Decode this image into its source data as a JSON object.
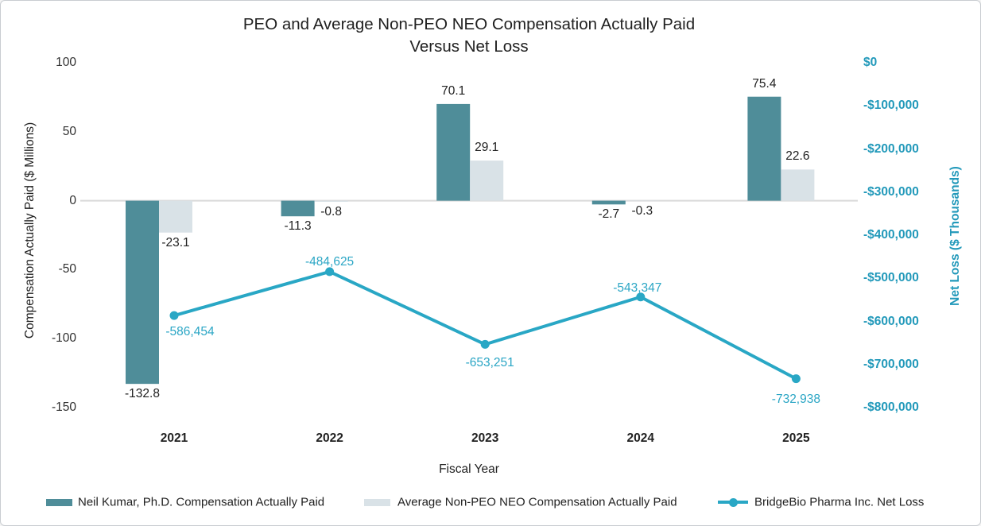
{
  "title": {
    "line1": "PEO and Average Non-PEO NEO Compensation Actually Paid",
    "line2": "Versus Net Loss"
  },
  "chart_data": {
    "type": "combo-bar-line",
    "categories": [
      "2021",
      "2022",
      "2023",
      "2024",
      "2025"
    ],
    "xlabel": "Fiscal Year",
    "left_axis": {
      "label": "Compensation Actually Paid ($ Millions)",
      "ticks": [
        "100",
        "50",
        "0",
        "-50",
        "-100",
        "-150"
      ],
      "range": [
        -150,
        100
      ],
      "grid": false
    },
    "right_axis": {
      "label": "Net Loss ($ Thousands)",
      "ticks": [
        "$0",
        "-$100,000",
        "-$200,000",
        "-$300,000",
        "-$400,000",
        "-$500,000",
        "-$600,000",
        "-$700,000",
        "-$800,000"
      ],
      "range": [
        -800000,
        0
      ],
      "grid": false
    },
    "series": [
      {
        "name": "Neil Kumar, Ph.D. Compensation Actually Paid",
        "type": "bar",
        "axis": "left",
        "color": "#4F8D99",
        "values": [
          -132.8,
          -11.3,
          70.1,
          -2.7,
          75.4
        ],
        "labels": [
          "-132.8",
          "-11.3",
          "70.1",
          "-2.7",
          "75.4"
        ]
      },
      {
        "name": "Average Non-PEO NEO Compensation Actually Paid",
        "type": "bar",
        "axis": "left",
        "color": "#D9E2E7",
        "values": [
          -23.1,
          -0.8,
          29.1,
          -0.3,
          22.6
        ],
        "labels": [
          "-23.1",
          "-0.8",
          "29.1",
          "-0.3",
          "22.6"
        ]
      },
      {
        "name": "BridgeBio Pharma Inc. Net Loss",
        "type": "line",
        "axis": "right",
        "color": "#29A7C5",
        "values": [
          -586454,
          -484625,
          -653251,
          -543347,
          -732938
        ],
        "labels": [
          "-586,454",
          "-484,625",
          "-653,251",
          "-543,347",
          "-732,938"
        ]
      }
    ],
    "legend_position": "bottom",
    "colors": {
      "peo_bar": "#4F8D99",
      "neo_bar": "#D9E2E7",
      "net_loss_line": "#29A7C5",
      "right_axis_text": "#2299BA",
      "line_label_text": "#2BA6C5",
      "zero_gridline": "#D9D9D9",
      "text": "#212121"
    }
  }
}
